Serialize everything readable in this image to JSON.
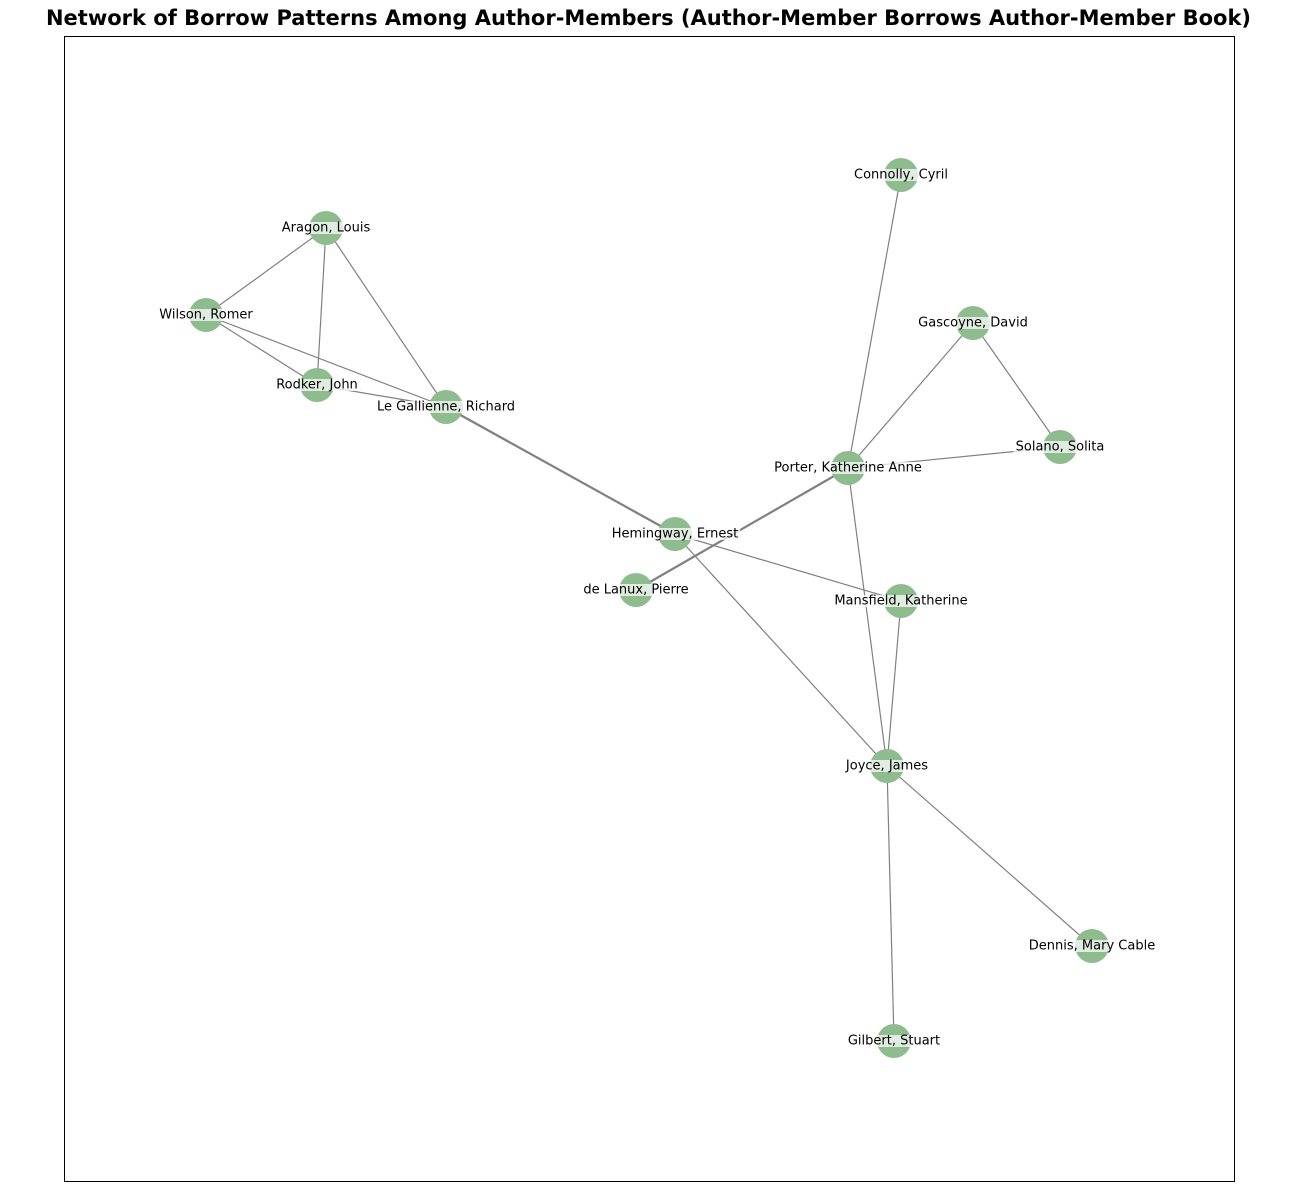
{
  "title": "Network of Borrow Patterns Among Author-Members (Author-Member Borrows Author-Member Book)",
  "colors": {
    "node_fill": "#8fbc8f",
    "edge": "#808080",
    "frame": "#000000",
    "background": "#ffffff"
  },
  "nodes": [
    {
      "id": "aragon",
      "label": "Aragon, Louis"
    },
    {
      "id": "wilson",
      "label": "Wilson, Romer"
    },
    {
      "id": "rodker",
      "label": "Rodker, John"
    },
    {
      "id": "legallienne",
      "label": "Le Gallienne, Richard"
    },
    {
      "id": "hemingway",
      "label": "Hemingway, Ernest"
    },
    {
      "id": "delanux",
      "label": "de Lanux, Pierre"
    },
    {
      "id": "connolly",
      "label": "Connolly, Cyril"
    },
    {
      "id": "gascoyne",
      "label": "Gascoyne, David"
    },
    {
      "id": "solano",
      "label": "Solano, Solita"
    },
    {
      "id": "porter",
      "label": "Porter, Katherine Anne"
    },
    {
      "id": "mansfield",
      "label": "Mansfield, Katherine"
    },
    {
      "id": "joyce",
      "label": "Joyce, James"
    },
    {
      "id": "dennis",
      "label": "Dennis, Mary Cable"
    },
    {
      "id": "gilbert",
      "label": "Gilbert, Stuart"
    }
  ],
  "edges": [
    {
      "source": "aragon",
      "target": "wilson",
      "weight": 1
    },
    {
      "source": "aragon",
      "target": "rodker",
      "weight": 1
    },
    {
      "source": "aragon",
      "target": "legallienne",
      "weight": 1
    },
    {
      "source": "wilson",
      "target": "rodker",
      "weight": 1
    },
    {
      "source": "wilson",
      "target": "legallienne",
      "weight": 1
    },
    {
      "source": "rodker",
      "target": "legallienne",
      "weight": 1
    },
    {
      "source": "legallienne",
      "target": "hemingway",
      "weight": 2
    },
    {
      "source": "hemingway",
      "target": "mansfield",
      "weight": 1
    },
    {
      "source": "hemingway",
      "target": "joyce",
      "weight": 1
    },
    {
      "source": "delanux",
      "target": "porter",
      "weight": 2
    },
    {
      "source": "connolly",
      "target": "porter",
      "weight": 1
    },
    {
      "source": "gascoyne",
      "target": "porter",
      "weight": 1
    },
    {
      "source": "gascoyne",
      "target": "solano",
      "weight": 1
    },
    {
      "source": "porter",
      "target": "solano",
      "weight": 1
    },
    {
      "source": "porter",
      "target": "joyce",
      "weight": 1
    },
    {
      "source": "mansfield",
      "target": "joyce",
      "weight": 1
    },
    {
      "source": "joyce",
      "target": "dennis",
      "weight": 1
    },
    {
      "source": "joyce",
      "target": "gilbert",
      "weight": 1
    }
  ]
}
